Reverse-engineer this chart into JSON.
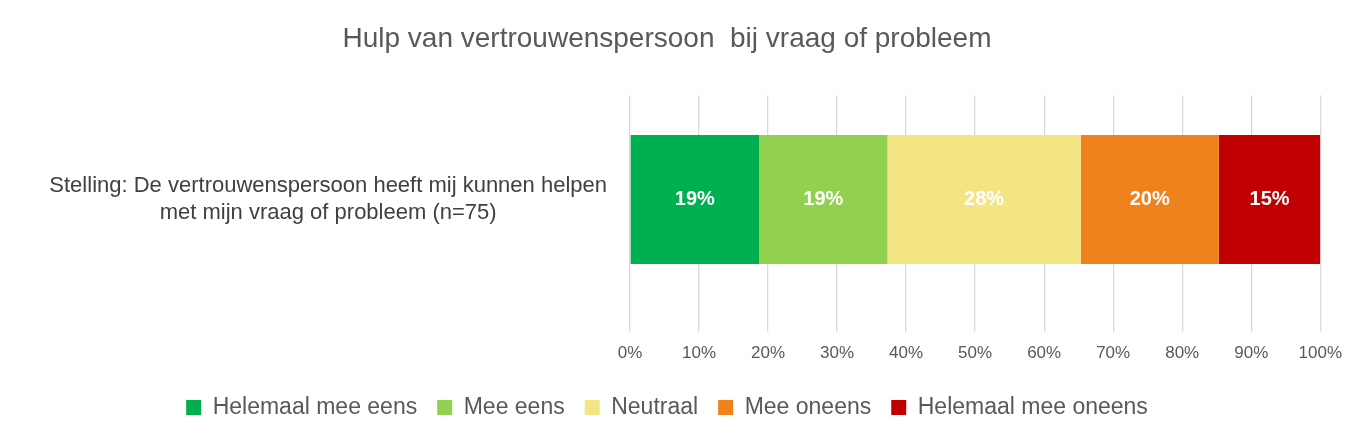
{
  "chart_data": {
    "type": "bar",
    "orientation": "horizontal",
    "stacked": true,
    "title": "Hulp van vertrouwenspersoon  bij vraag of probleem",
    "categories": [
      "Stelling: De vertrouwenspersoon heeft mij kunnen helpen met mijn vraag of probleem (n=75)"
    ],
    "series": [
      {
        "name": "Helemaal mee eens",
        "color": "#00b050",
        "values": [
          18.7
        ],
        "value_labels": [
          "19%"
        ]
      },
      {
        "name": "Mee eens",
        "color": "#92d050",
        "values": [
          18.6
        ],
        "value_labels": [
          "19%"
        ]
      },
      {
        "name": "Neutraal",
        "color": "#f4e584",
        "values": [
          28
        ],
        "value_labels": [
          "28%"
        ]
      },
      {
        "name": "Mee oneens",
        "color": "#f0821e",
        "values": [
          20
        ],
        "value_labels": [
          "20%"
        ]
      },
      {
        "name": "Helemaal mee oneens",
        "color": "#c00000",
        "values": [
          14.7
        ],
        "value_labels": [
          "15%"
        ]
      }
    ],
    "xlim": [
      0,
      100
    ],
    "xticks": [
      {
        "value": 0,
        "label": "0%"
      },
      {
        "value": 10,
        "label": "10%"
      },
      {
        "value": 20,
        "label": "20%"
      },
      {
        "value": 30,
        "label": "30%"
      },
      {
        "value": 40,
        "label": "40%"
      },
      {
        "value": 50,
        "label": "50%"
      },
      {
        "value": 60,
        "label": "60%"
      },
      {
        "value": 70,
        "label": "70%"
      },
      {
        "value": 80,
        "label": "80%"
      },
      {
        "value": 90,
        "label": "90%"
      },
      {
        "value": 100,
        "label": "100%"
      }
    ],
    "grid": "x",
    "legend": "bottom"
  }
}
